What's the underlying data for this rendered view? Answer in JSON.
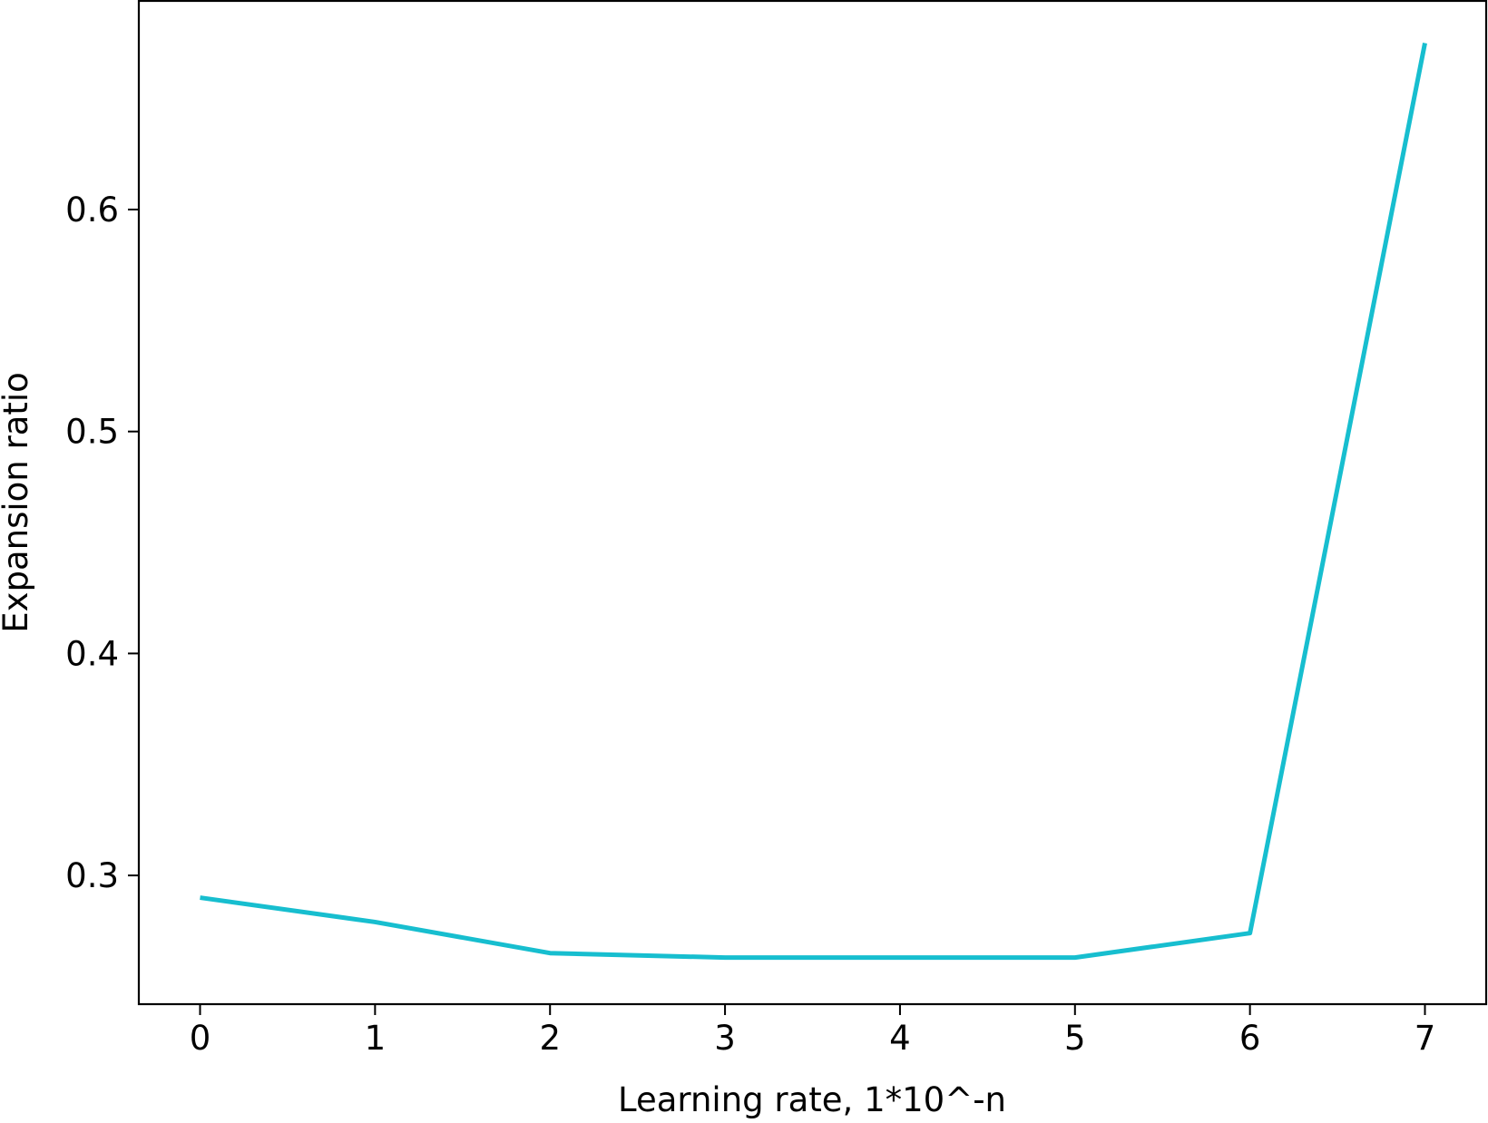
{
  "chart_data": {
    "type": "line",
    "title": "",
    "xlabel": "Learning rate, 1*10^-n",
    "ylabel": "Expansion ratio",
    "x": [
      0,
      1,
      2,
      3,
      4,
      5,
      6,
      7
    ],
    "series": [
      {
        "values": [
          0.29,
          0.279,
          0.265,
          0.263,
          0.263,
          0.263,
          0.274,
          0.675
        ],
        "color": "#17becf"
      }
    ],
    "xlim": [
      -0.35,
      7.35
    ],
    "ylim": [
      0.242,
      0.694
    ],
    "xticks": [
      0,
      1,
      2,
      3,
      4,
      5,
      6,
      7
    ],
    "xtick_labels": [
      "0",
      "1",
      "2",
      "3",
      "4",
      "5",
      "6",
      "7"
    ],
    "yticks": [
      0.3,
      0.4,
      0.5,
      0.6
    ],
    "ytick_labels": [
      "0.3",
      "0.4",
      "0.5",
      "0.6"
    ],
    "grid": false,
    "legend": "none"
  }
}
